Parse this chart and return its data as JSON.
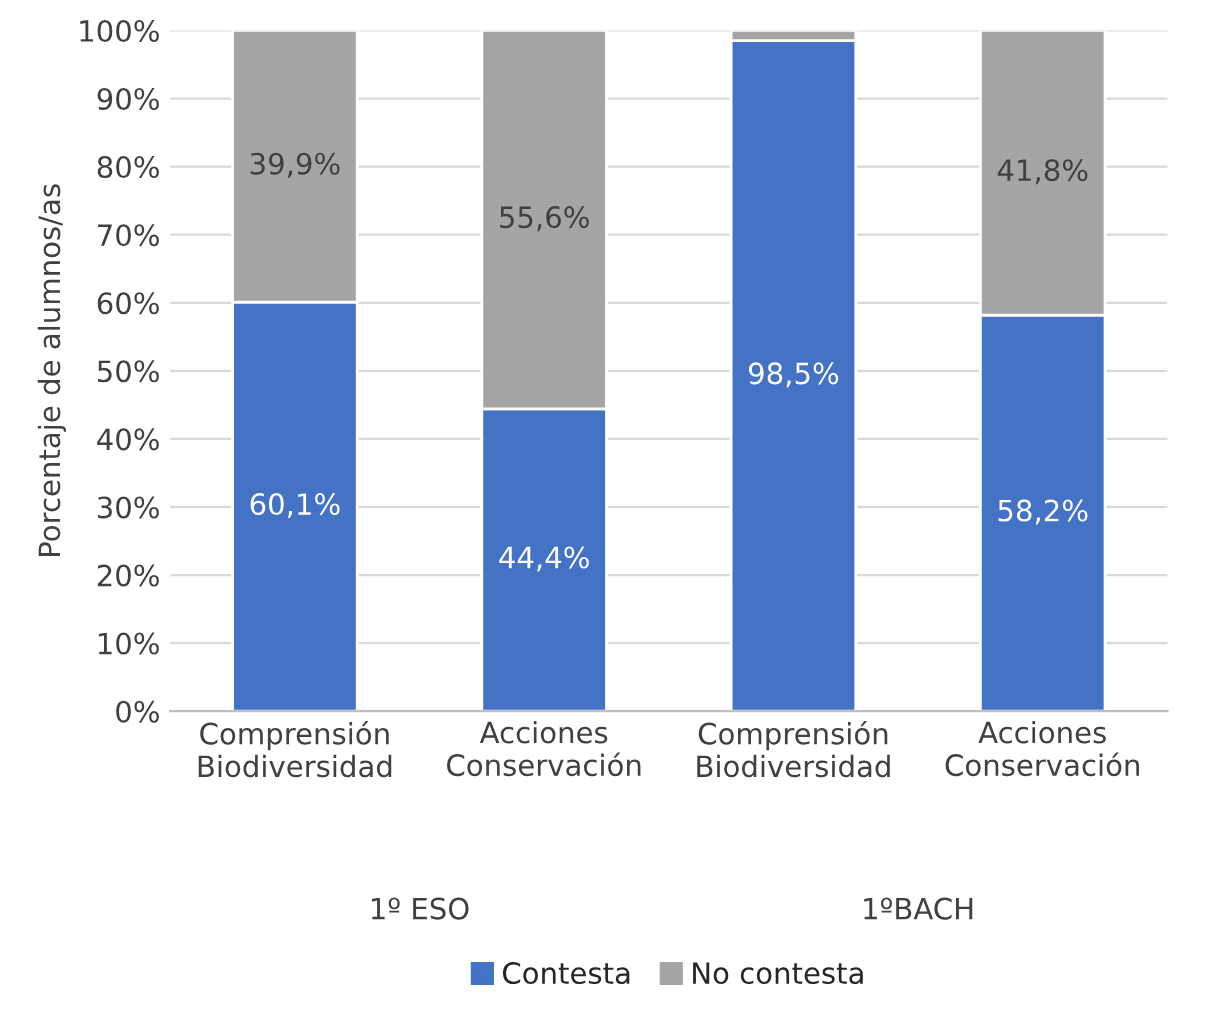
{
  "chart_data": {
    "type": "bar",
    "stacked": true,
    "ylabel": "Porcentaje de alumnos/as",
    "categories": [
      "Comprensión\nBiodiversidad",
      "Acciones\nConservación",
      "Comprensión\nBiodiversidad",
      "Acciones\nConservación"
    ],
    "series": [
      {
        "name": "Contesta",
        "color": "#4472c4",
        "values": [
          60.1,
          44.4,
          98.5,
          58.2
        ],
        "value_labels": [
          "60,1%",
          "44,4%",
          "98,5%",
          "58,2%"
        ]
      },
      {
        "name": "No contesta",
        "color": "#a5a5a5",
        "values": [
          39.9,
          55.6,
          1.5,
          41.8
        ],
        "value_labels": [
          "39,9%",
          "55,6%",
          null,
          "41,8%"
        ]
      }
    ],
    "annotations": [
      "1º ESO",
      "1ºBACH"
    ],
    "ylim": [
      0,
      100
    ],
    "yticks": [
      {
        "value": 0,
        "label": "0%"
      },
      {
        "value": 10,
        "label": "10%"
      },
      {
        "value": 20,
        "label": "20%"
      },
      {
        "value": 30,
        "label": "30%"
      },
      {
        "value": 40,
        "label": "40%"
      },
      {
        "value": 50,
        "label": "50%"
      },
      {
        "value": 60,
        "label": "60%"
      },
      {
        "value": 70,
        "label": "70%"
      },
      {
        "value": 80,
        "label": "80%"
      },
      {
        "value": 90,
        "label": "90%"
      },
      {
        "value": 100,
        "label": "100%"
      }
    ],
    "grid": "y",
    "legend": "bottom"
  }
}
